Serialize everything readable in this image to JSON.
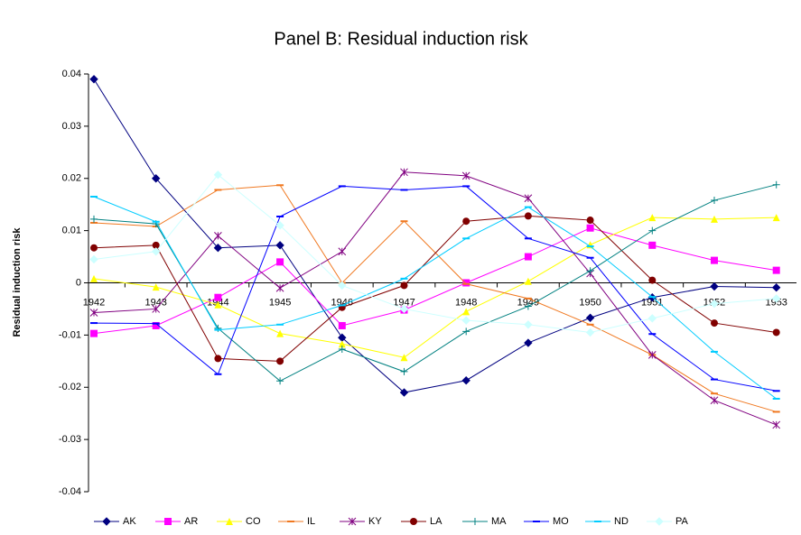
{
  "chart_data": {
    "type": "line",
    "title": "Panel B: Residual induction risk",
    "y_label": "Residual induction risk",
    "categories": [
      "1942",
      "1943",
      "1944",
      "1945",
      "1946",
      "1947",
      "1948",
      "1949",
      "1950",
      "1951",
      "1952",
      "1953"
    ],
    "ylim": [
      -0.04,
      0.04
    ],
    "yticks": [
      -0.04,
      -0.03,
      -0.02,
      -0.01,
      0,
      0.01,
      0.02,
      0.03,
      0.04
    ],
    "legend": "bottom",
    "series": [
      {
        "name": "AK",
        "color": "#000080",
        "marker": "diamond",
        "values": [
          0.039,
          0.02,
          0.0067,
          0.0072,
          -0.0105,
          -0.021,
          -0.0187,
          -0.0115,
          -0.0067,
          -0.0028,
          -0.0007,
          -0.0009
        ]
      },
      {
        "name": "AR",
        "color": "#ff00ff",
        "marker": "square",
        "values": [
          -0.0097,
          -0.0082,
          -0.0028,
          0.004,
          -0.0082,
          -0.0052,
          0.0,
          0.005,
          0.0105,
          0.0072,
          0.0043,
          0.0024
        ]
      },
      {
        "name": "CO",
        "color": "#ffff00",
        "marker": "triangle",
        "values": [
          0.0008,
          -0.0008,
          -0.0042,
          -0.0097,
          -0.0117,
          -0.0143,
          -0.0055,
          0.0003,
          0.0073,
          0.0125,
          0.0122,
          0.0125
        ]
      },
      {
        "name": "IL",
        "color": "#f07820",
        "marker": "dash",
        "values": [
          0.0115,
          0.0108,
          0.0178,
          0.0187,
          0.0,
          0.0118,
          -0.0002,
          -0.003,
          -0.008,
          -0.0138,
          -0.0212,
          -0.0247
        ]
      },
      {
        "name": "KY",
        "color": "#800080",
        "marker": "star",
        "values": [
          -0.0057,
          -0.005,
          0.009,
          -0.001,
          0.006,
          0.0212,
          0.0205,
          0.0162,
          0.0018,
          -0.0138,
          -0.0225,
          -0.0272
        ]
      },
      {
        "name": "LA",
        "color": "#800000",
        "marker": "circle",
        "values": [
          0.0067,
          0.0072,
          -0.0145,
          -0.015,
          -0.0047,
          -0.0005,
          0.0118,
          0.0128,
          0.012,
          0.0005,
          -0.0077,
          -0.0095
        ]
      },
      {
        "name": "MA",
        "color": "#008080",
        "marker": "plus",
        "values": [
          0.0122,
          0.0113,
          -0.0087,
          -0.0188,
          -0.0127,
          -0.017,
          -0.0093,
          -0.0045,
          0.0023,
          0.01,
          0.0158,
          0.0188
        ]
      },
      {
        "name": "MO",
        "color": "#0000ff",
        "marker": "dash",
        "values": [
          -0.0077,
          -0.0078,
          -0.0175,
          0.0127,
          0.0185,
          0.0178,
          0.0185,
          0.0085,
          0.0048,
          -0.0098,
          -0.0185,
          -0.0207
        ]
      },
      {
        "name": "ND",
        "color": "#00ccff",
        "marker": "dash",
        "values": [
          0.0165,
          0.0117,
          -0.009,
          -0.008,
          -0.0043,
          0.0008,
          0.0085,
          0.0145,
          0.007,
          -0.0027,
          -0.0132,
          -0.0222
        ]
      },
      {
        "name": "PA",
        "color": "#ccffff",
        "marker": "diamond",
        "values": [
          0.0045,
          0.006,
          0.0207,
          0.011,
          -0.0005,
          -0.005,
          -0.0072,
          -0.008,
          -0.0095,
          -0.0068,
          -0.004,
          -0.003
        ]
      }
    ]
  }
}
